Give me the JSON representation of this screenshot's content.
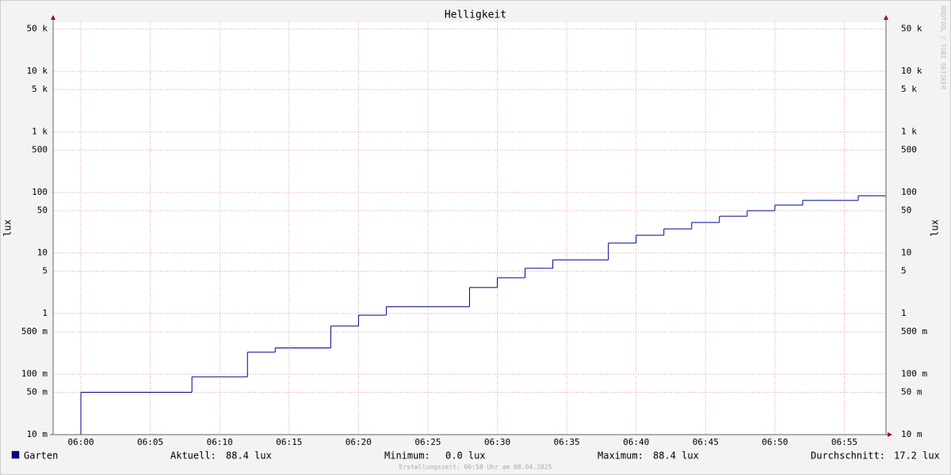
{
  "chart_data": {
    "type": "line",
    "step": true,
    "title": "Helligkeit",
    "ylabel": "lux",
    "y2label": "lux",
    "log_y": true,
    "grid": true,
    "watermark": "RRDTOOL / TOBI OETIKER",
    "footer": "Erstellungszeit: 06:58 Uhr am 08.04.2025",
    "xlim": [
      "05:58",
      "06:58"
    ],
    "xticks": [
      "06:00",
      "06:05",
      "06:10",
      "06:15",
      "06:20",
      "06:25",
      "06:30",
      "06:35",
      "06:40",
      "06:45",
      "06:50",
      "06:55"
    ],
    "ylim": [
      0.01,
      65000
    ],
    "yticks": [
      {
        "value": 0.01,
        "label": "10 m"
      },
      {
        "value": 0.05,
        "label": "50 m"
      },
      {
        "value": 0.1,
        "label": "100 m"
      },
      {
        "value": 0.5,
        "label": "500 m"
      },
      1,
      5,
      10,
      50,
      100,
      500,
      {
        "value": 1000,
        "label": "1 k"
      },
      {
        "value": 5000,
        "label": "5 k"
      },
      {
        "value": 10000,
        "label": "10 k"
      },
      {
        "value": 50000,
        "label": "50 k"
      }
    ],
    "x": [
      "05:58",
      "06:00",
      "06:08",
      "06:12",
      "06:14",
      "06:18",
      "06:20",
      "06:22",
      "06:28",
      "06:30",
      "06:32",
      "06:34",
      "06:38",
      "06:40",
      "06:42",
      "06:44",
      "06:46",
      "06:48",
      "06:50",
      "06:52",
      "06:56"
    ],
    "series": [
      {
        "name": "Garten",
        "color": "#000090",
        "values": [
          0,
          0.05,
          0.09,
          0.23,
          0.27,
          0.62,
          0.94,
          1.3,
          2.7,
          3.9,
          5.6,
          7.7,
          14.6,
          19.7,
          25,
          32,
          40.5,
          50,
          62,
          74,
          88.4
        ]
      }
    ],
    "stats": [
      {
        "label": "Aktuell:",
        "value": "88.4 lux"
      },
      {
        "label": "Minimum:",
        "value": "0.0 lux"
      },
      {
        "label": "Maximum:",
        "value": "88.4 lux"
      },
      {
        "label": "Durchschnitt:",
        "value": "17.2 lux"
      }
    ]
  }
}
